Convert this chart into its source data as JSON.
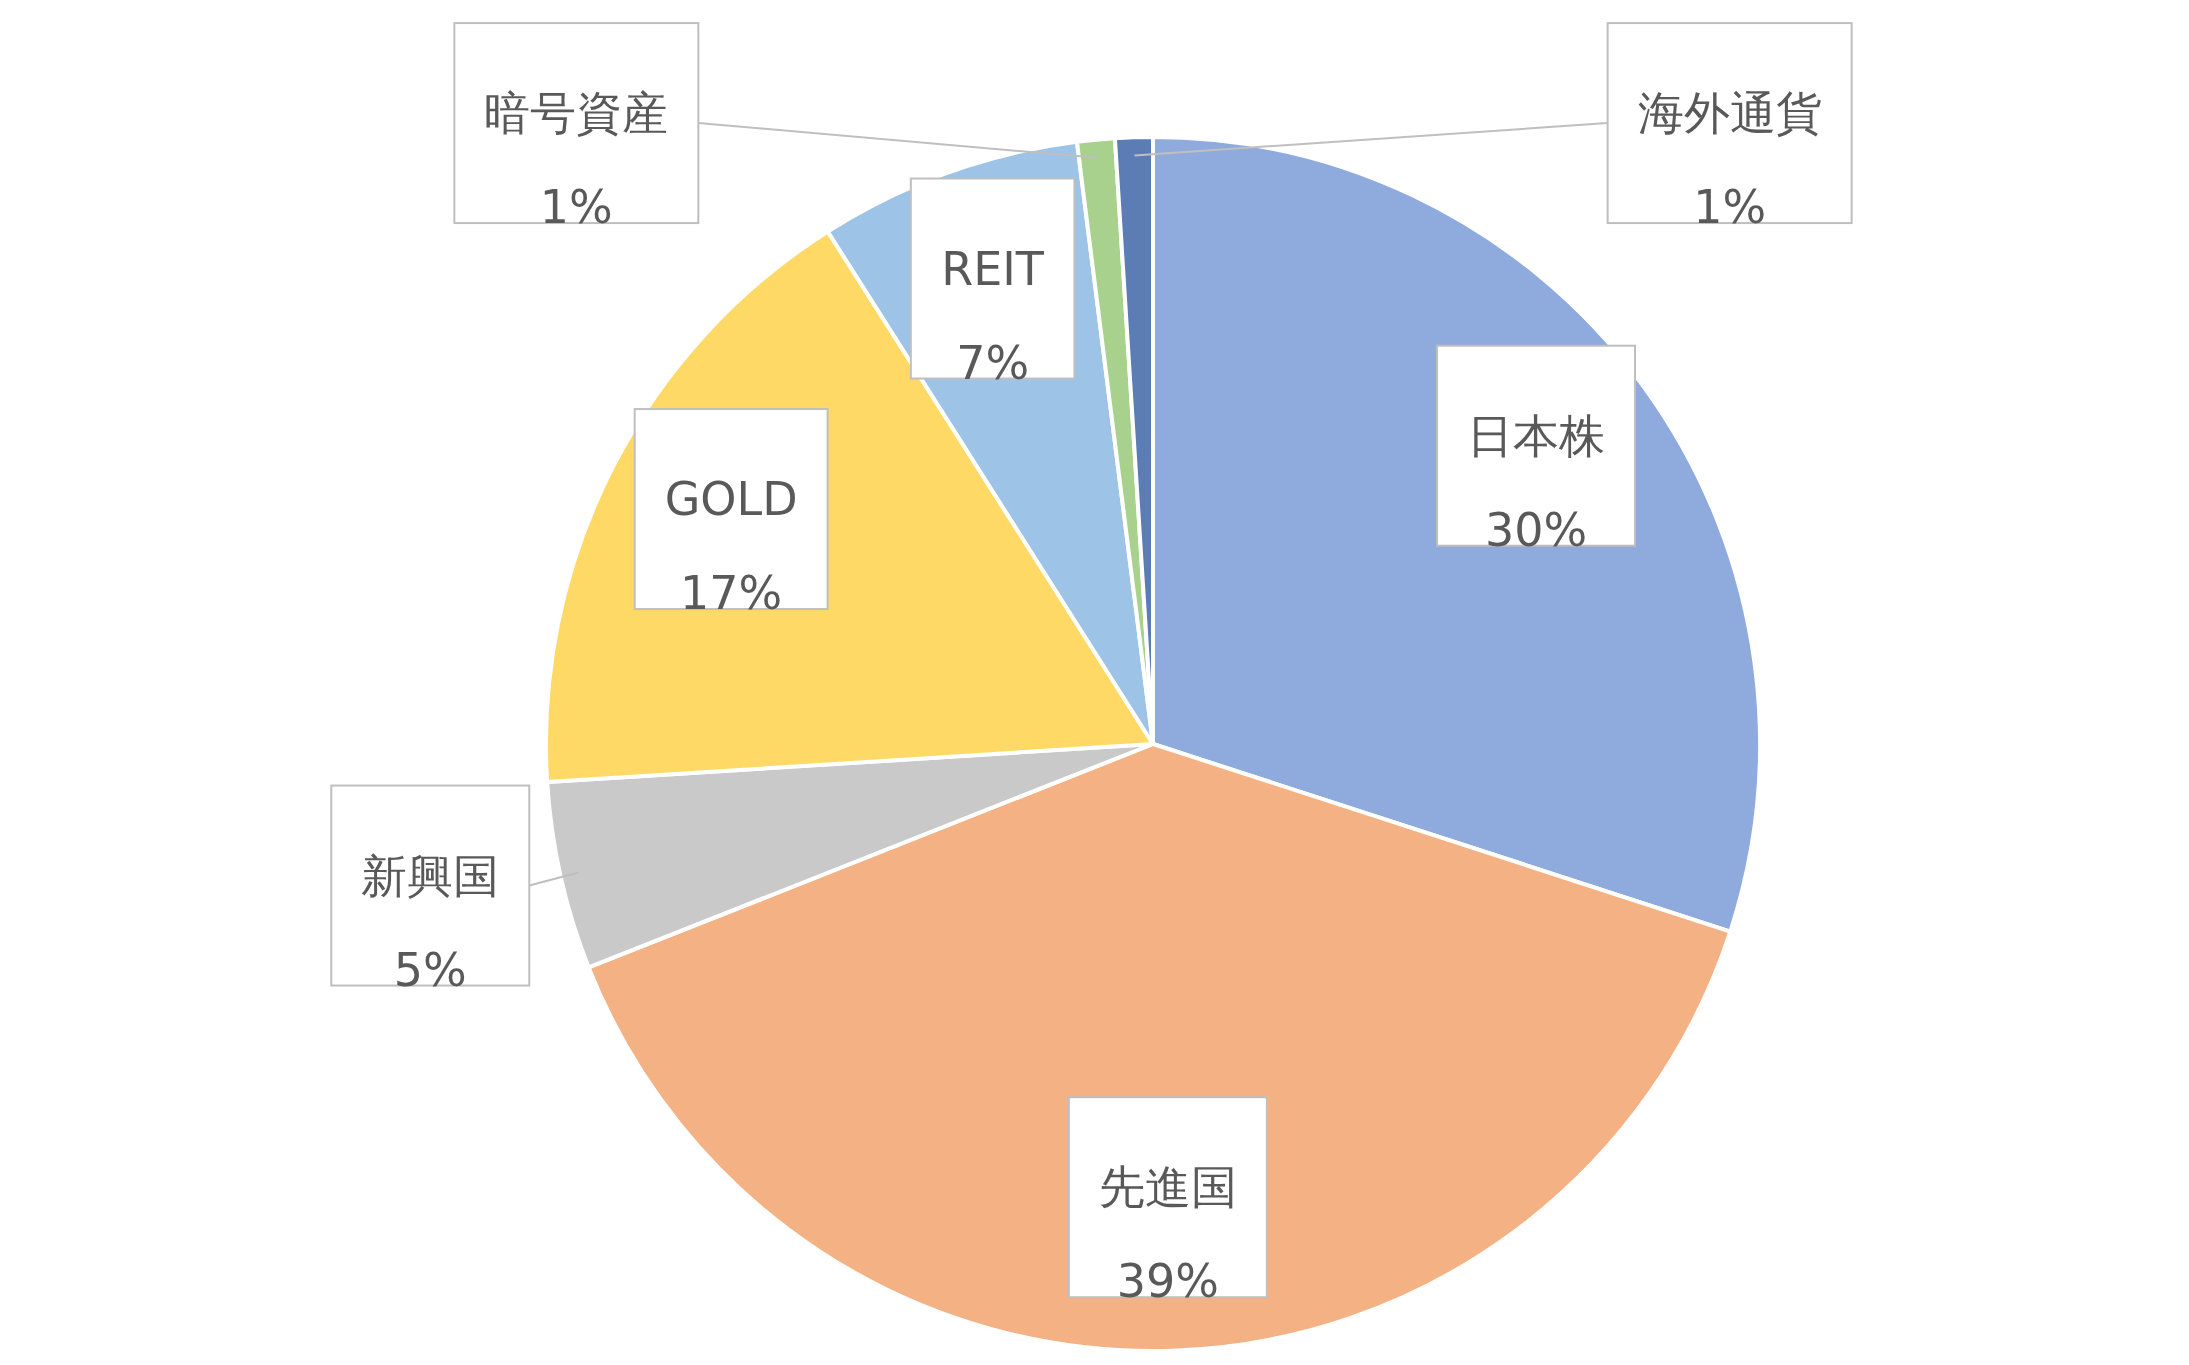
{
  "chart_data": {
    "type": "pie",
    "categories": [
      "日本株",
      "先進国",
      "新興国",
      "GOLD",
      "REIT",
      "暗号資産",
      "海外通貨"
    ],
    "values": [
      30,
      39,
      5,
      17,
      7,
      1,
      1
    ],
    "colors": [
      "#8faadc",
      "#f4b183",
      "#c9c9c9",
      "#ffd966",
      "#9dc3e6",
      "#a9d18e",
      "#5b7cb4"
    ],
    "value_labels": [
      "30%",
      "39%",
      "5%",
      "17%",
      "7%",
      "1%",
      "1%"
    ]
  }
}
